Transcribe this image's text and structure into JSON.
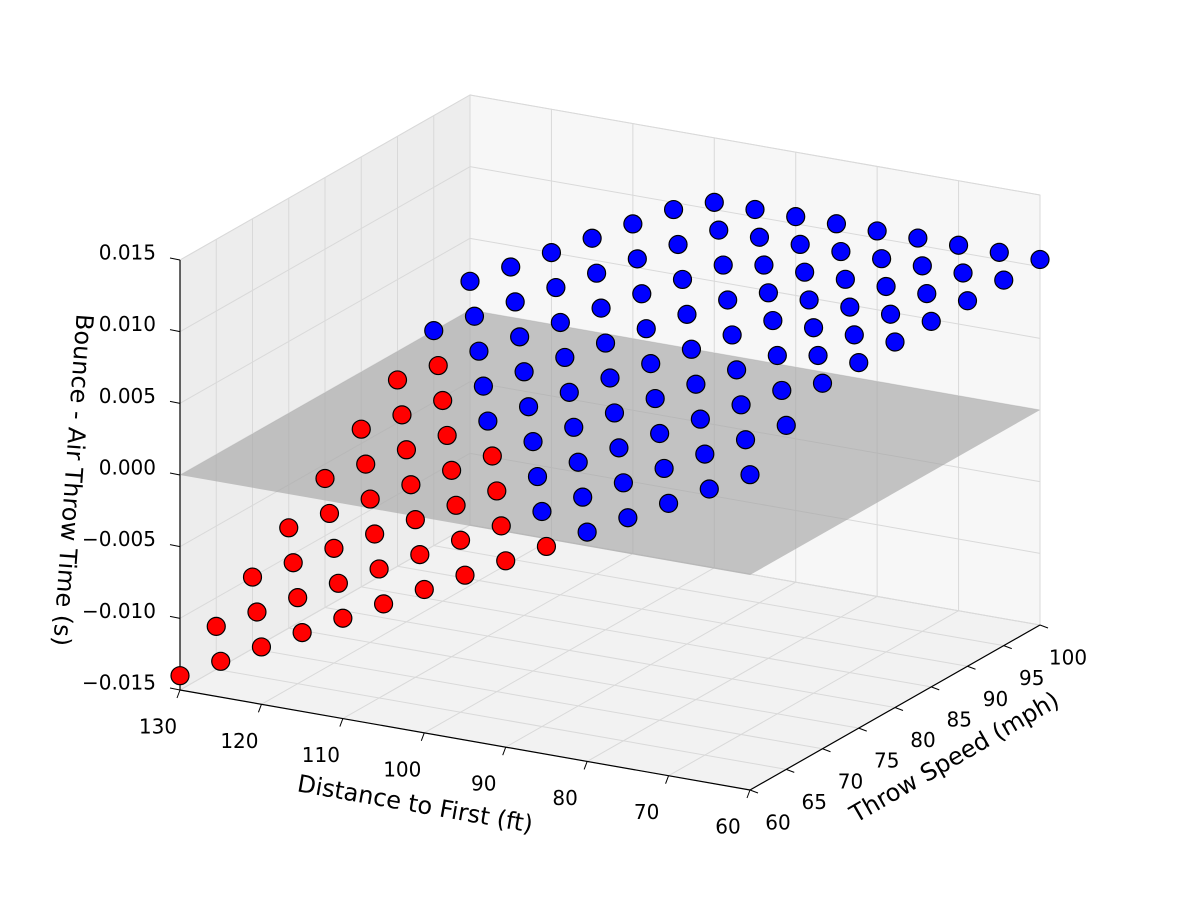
{
  "chart_data": {
    "type": "scatter3d",
    "xlabel": "Distance to First (ft)",
    "ylabel": "Throw Speed (mph)",
    "zlabel": "Bounce - Air Throw Time (s)",
    "xlim": [
      60,
      130
    ],
    "xticks": [
      60,
      70,
      80,
      90,
      100,
      110,
      120,
      130
    ],
    "ylim": [
      60,
      100
    ],
    "yticks": [
      60,
      65,
      70,
      75,
      80,
      85,
      90,
      95,
      100
    ],
    "zlim": [
      -0.015,
      0.015
    ],
    "zticks": [
      {
        "value": -0.015,
        "label": "−0.015"
      },
      {
        "value": -0.01,
        "label": "−0.010"
      },
      {
        "value": -0.005,
        "label": "−0.005"
      },
      {
        "value": 0,
        "label": "0.000"
      },
      0.005,
      {
        "value": 0.01,
        "label": "0.010"
      },
      0.015
    ],
    "grid": true,
    "plane": {
      "z": 0,
      "color": "#a6a6a6"
    },
    "series": [
      {
        "color": "#ff0000",
        "x": [
          130,
          125,
          120,
          115,
          110,
          105,
          100,
          95,
          90,
          85,
          130,
          125,
          120,
          115,
          110,
          105,
          100,
          95,
          130,
          125,
          120,
          115,
          110,
          105,
          100,
          130,
          125,
          120,
          115,
          110,
          105,
          130,
          125,
          120,
          115,
          130,
          125,
          120,
          130,
          125
        ],
        "y": [
          60,
          60,
          60,
          60,
          60,
          60,
          60,
          60,
          60,
          60,
          65,
          65,
          65,
          65,
          65,
          65,
          65,
          65,
          70,
          70,
          70,
          70,
          70,
          70,
          70,
          75,
          75,
          75,
          75,
          75,
          75,
          80,
          80,
          80,
          80,
          85,
          85,
          85,
          90,
          90
        ],
        "z": [
          -0.014,
          -0.0125,
          -0.011,
          -0.0095,
          -0.008,
          -0.0065,
          -0.005,
          -0.0035,
          -0.002,
          -0.0005,
          -0.012,
          -0.0105,
          -0.009,
          -0.0075,
          -0.006,
          -0.0045,
          -0.003,
          -0.0015,
          -0.01,
          -0.0085,
          -0.007,
          -0.0055,
          -0.004,
          -0.0025,
          -0.001,
          -0.008,
          -0.0065,
          -0.005,
          -0.0035,
          -0.002,
          -0.0005,
          -0.006,
          -0.0045,
          -0.003,
          -0.0015,
          -0.004,
          -0.0025,
          -0.001,
          -0.002,
          -0.0005
        ]
      },
      {
        "color": "#0000ff",
        "x": [
          80,
          75,
          70,
          65,
          60,
          90,
          85,
          80,
          75,
          70,
          65,
          60,
          95,
          90,
          85,
          80,
          75,
          70,
          65,
          60,
          100,
          95,
          90,
          85,
          80,
          75,
          70,
          65,
          60,
          110,
          105,
          100,
          95,
          90,
          85,
          80,
          75,
          70,
          65,
          60,
          115,
          110,
          105,
          100,
          95,
          90,
          85,
          80,
          75,
          70,
          65,
          60,
          120,
          115,
          110,
          105,
          100,
          95,
          90,
          85,
          80,
          75,
          70,
          65,
          60,
          130,
          125,
          120,
          115,
          110,
          105,
          100,
          95,
          90,
          85,
          80,
          75,
          70,
          65,
          60,
          130,
          125,
          120,
          115,
          110,
          105,
          100,
          95,
          90,
          85,
          80,
          75,
          70,
          65,
          60
        ],
        "y": [
          60,
          60,
          60,
          60,
          60,
          65,
          65,
          65,
          65,
          65,
          65,
          65,
          70,
          70,
          70,
          70,
          70,
          70,
          70,
          70,
          75,
          75,
          75,
          75,
          75,
          75,
          75,
          75,
          75,
          80,
          80,
          80,
          80,
          80,
          80,
          80,
          80,
          80,
          80,
          80,
          85,
          85,
          85,
          85,
          85,
          85,
          85,
          85,
          85,
          85,
          85,
          85,
          90,
          90,
          90,
          90,
          90,
          90,
          90,
          90,
          90,
          90,
          90,
          90,
          90,
          95,
          95,
          95,
          95,
          95,
          95,
          95,
          95,
          95,
          95,
          95,
          95,
          95,
          95,
          95,
          100,
          100,
          100,
          100,
          100,
          100,
          100,
          100,
          100,
          100,
          100,
          100,
          100,
          100,
          100
        ],
        "z": [
          0.001,
          0.0025,
          0.004,
          0.0055,
          0.007,
          0,
          0.0015,
          0.003,
          0.0045,
          0.006,
          0.0075,
          0.009,
          0.0005,
          0.002,
          0.0035,
          0.005,
          0.0065,
          0.008,
          0.0095,
          0.0105,
          0.001,
          0.0025,
          0.004,
          0.0055,
          0.007,
          0.0085,
          0.01,
          0.0105,
          0.0105,
          0,
          0.0015,
          0.003,
          0.0045,
          0.006,
          0.0075,
          0.009,
          0.0105,
          0.0105,
          0.0105,
          0.0105,
          0.0005,
          0.002,
          0.0035,
          0.005,
          0.0065,
          0.008,
          0.0095,
          0.0105,
          0.0105,
          0.0105,
          0.0105,
          0.0105,
          0.001,
          0.0025,
          0.004,
          0.0055,
          0.007,
          0.0085,
          0.01,
          0.0105,
          0.0105,
          0.0105,
          0.0105,
          0.0105,
          0.0105,
          0,
          0.0015,
          0.003,
          0.0045,
          0.006,
          0.0075,
          0.009,
          0.0105,
          0.0105,
          0.0105,
          0.0105,
          0.0105,
          0.0105,
          0.0105,
          0.0105,
          0.002,
          0.0035,
          0.005,
          0.0065,
          0.008,
          0.0095,
          0.0105,
          0.0105,
          0.0105,
          0.0105,
          0.0105,
          0.0105,
          0.0105,
          0.0105,
          0.0105
        ]
      }
    ]
  }
}
